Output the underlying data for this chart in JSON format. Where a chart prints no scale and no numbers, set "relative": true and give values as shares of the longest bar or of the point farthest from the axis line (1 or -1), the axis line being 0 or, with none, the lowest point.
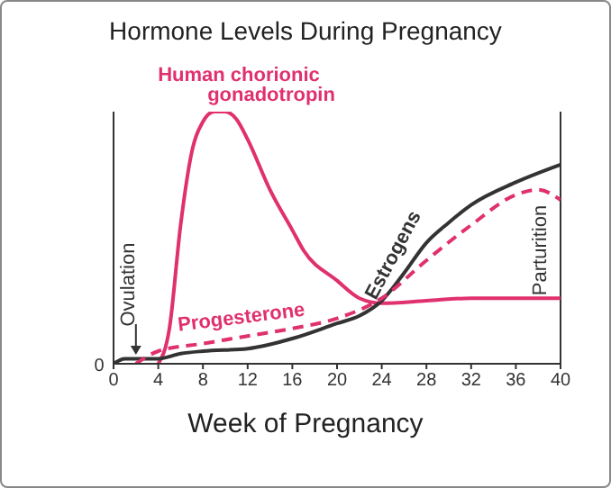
{
  "chart_data": {
    "type": "line",
    "title": "Hormone Levels During Pregnancy",
    "xlabel": "Week of Pregnancy",
    "relative": true,
    "xlim": [
      0,
      40
    ],
    "xticks": [
      0,
      4,
      8,
      12,
      16,
      20,
      24,
      28,
      32,
      36,
      40
    ],
    "legend": false,
    "grid": false,
    "marker": "none",
    "series": [
      {
        "name": "Human chorionic gonadotropin",
        "color": "#e0306e",
        "line_style": "solid",
        "x": [
          4,
          5,
          6,
          7,
          8,
          9,
          10,
          11,
          12,
          14,
          16,
          17,
          20,
          22,
          24,
          28,
          32,
          36,
          40
        ],
        "values": [
          0,
          0.14,
          0.55,
          0.84,
          0.96,
          1,
          1,
          0.97,
          0.89,
          0.69,
          0.53,
          0.45,
          0.33,
          0.26,
          0.24,
          0.25,
          0.26,
          0.26,
          0.26
        ]
      },
      {
        "name": "Estrogens",
        "color": "#333333",
        "line_style": "solid",
        "x": [
          0,
          1,
          2,
          4,
          6,
          8,
          12,
          16,
          20,
          22,
          24,
          26,
          28,
          30,
          32,
          36,
          40
        ],
        "values": [
          0,
          0.02,
          0.02,
          0.02,
          0.04,
          0.05,
          0.06,
          0.1,
          0.16,
          0.19,
          0.25,
          0.36,
          0.48,
          0.56,
          0.63,
          0.72,
          0.79
        ]
      },
      {
        "name": "Progesterone",
        "color": "#e0306e",
        "line_style": "dashed",
        "x": [
          2,
          4,
          8,
          12,
          16,
          20,
          24,
          28,
          32,
          36,
          38,
          40
        ],
        "values": [
          0,
          0.05,
          0.08,
          0.11,
          0.14,
          0.18,
          0.26,
          0.41,
          0.55,
          0.67,
          0.69,
          0.65
        ]
      }
    ],
    "ref_lines": [
      {
        "axis": "x",
        "value": 40,
        "label": "Parturition",
        "color": "#333333"
      }
    ],
    "annotations": [
      {
        "text": "Ovulation",
        "x": 2,
        "y": 0
      },
      "0"
    ]
  }
}
